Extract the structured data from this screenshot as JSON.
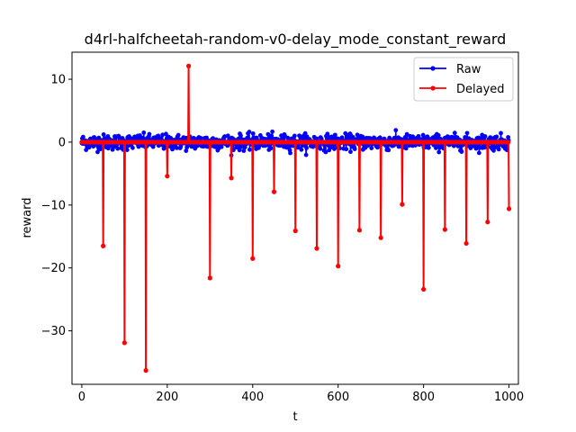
{
  "chart_data": {
    "type": "line",
    "title": "d4rl-halfcheetah-random-v0-delay_mode_constant_reward",
    "xlabel": "t",
    "ylabel": "reward",
    "xlim": [
      -23,
      1022
    ],
    "ylim": [
      -38.5,
      14.3
    ],
    "xticks": [
      0,
      200,
      400,
      600,
      800,
      1000
    ],
    "yticks": [
      -30,
      -20,
      -10,
      0,
      10
    ],
    "xtick_labels": [
      "0",
      "200",
      "400",
      "600",
      "800",
      "1000"
    ],
    "ytick_labels": [
      "−30",
      "−20",
      "−10",
      "0",
      "10"
    ],
    "legend": {
      "placement": "top-right"
    },
    "grid": false,
    "series": [
      {
        "name": "Raw",
        "color": "#0000ff",
        "marker": "dot",
        "n_points": 1000,
        "noise_std": 0.6,
        "range": [
          -2.8,
          1.9
        ]
      },
      {
        "name": "Delayed",
        "color": "#ff0000",
        "marker": "dot",
        "baseline": 0,
        "spikes": [
          {
            "t": 50,
            "value": -16.5
          },
          {
            "t": 100,
            "value": -31.9
          },
          {
            "t": 150,
            "value": -36.3
          },
          {
            "t": 200,
            "value": -5.4
          },
          {
            "t": 250,
            "value": 12.1
          },
          {
            "t": 300,
            "value": -21.6
          },
          {
            "t": 350,
            "value": -5.7
          },
          {
            "t": 400,
            "value": -18.5
          },
          {
            "t": 450,
            "value": -7.9
          },
          {
            "t": 500,
            "value": -14.1
          },
          {
            "t": 550,
            "value": -16.9
          },
          {
            "t": 600,
            "value": -19.7
          },
          {
            "t": 650,
            "value": -14.0
          },
          {
            "t": 700,
            "value": -15.2
          },
          {
            "t": 750,
            "value": -9.9
          },
          {
            "t": 800,
            "value": -23.4
          },
          {
            "t": 850,
            "value": -13.9
          },
          {
            "t": 900,
            "value": -16.1
          },
          {
            "t": 950,
            "value": -12.7
          },
          {
            "t": 1000,
            "value": -10.6
          }
        ]
      }
    ]
  }
}
